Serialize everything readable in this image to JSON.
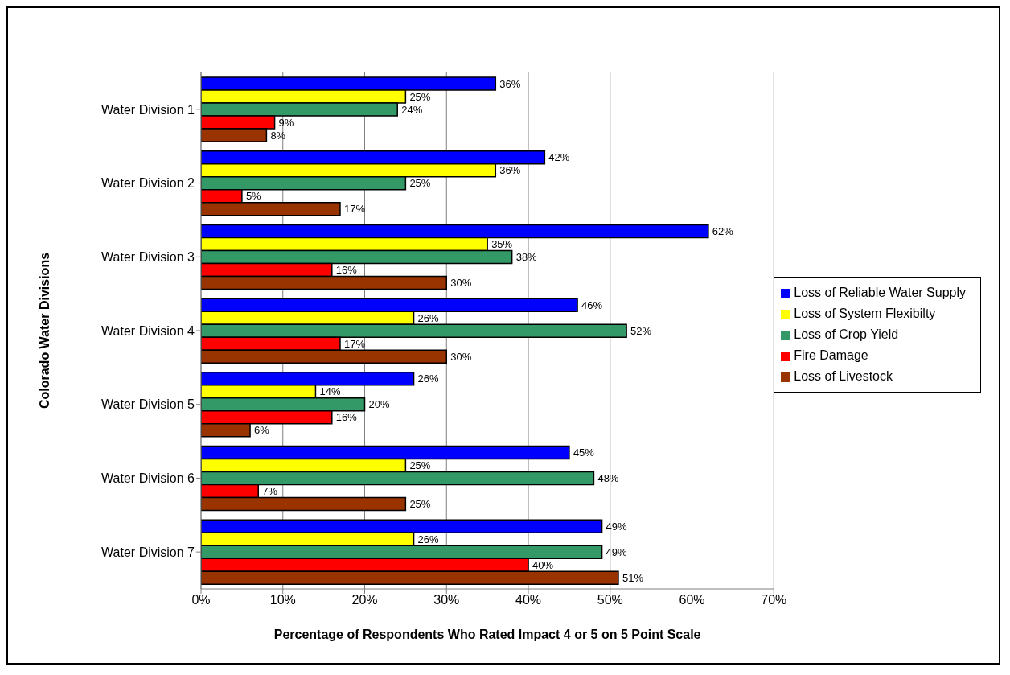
{
  "chart_data": {
    "type": "bar",
    "orientation": "horizontal",
    "xlabel": "Percentage of Respondents Who Rated Impact 4 or 5 on 5 Point Scale",
    "ylabel": "Colorado Water Divisions",
    "categories": [
      "Water Division 1",
      "Water Division 2",
      "Water Division 3",
      "Water Division 4",
      "Water Division 5",
      "Water Division 6",
      "Water Division 7"
    ],
    "series": [
      {
        "name": "Loss of Reliable Water Supply",
        "color": "#0000ff",
        "values": [
          36,
          42,
          62,
          46,
          26,
          45,
          49
        ],
        "value_labels": [
          "36%",
          "42%",
          "62%",
          "46%",
          "26%",
          "45%",
          "49%"
        ]
      },
      {
        "name": "Loss of System Flexibilty",
        "color": "#ffff00",
        "values": [
          25,
          36,
          35,
          26,
          14,
          25,
          26
        ],
        "value_labels": [
          "25%",
          "36%",
          "35%",
          "26%",
          "14%",
          "25%",
          "26%"
        ]
      },
      {
        "name": "Loss of Crop Yield",
        "color": "#339966",
        "values": [
          24,
          25,
          38,
          52,
          20,
          48,
          49
        ],
        "value_labels": [
          "24%",
          "25%",
          "38%",
          "52%",
          "20%",
          "48%",
          "49%"
        ]
      },
      {
        "name": "Fire Damage",
        "color": "#ff0000",
        "values": [
          9,
          5,
          16,
          17,
          16,
          7,
          40
        ],
        "value_labels": [
          "9%",
          "5%",
          "16%",
          "17%",
          "16%",
          "7%",
          "40%"
        ]
      },
      {
        "name": "Loss of Livestock",
        "color": "#993300",
        "values": [
          8,
          17,
          30,
          30,
          6,
          25,
          51
        ],
        "value_labels": [
          "8%",
          "17%",
          "30%",
          "30%",
          "6%",
          "25%",
          "51%"
        ]
      }
    ],
    "xlim": [
      0,
      70
    ],
    "xticks": [
      {
        "value": 0,
        "label": "0%"
      },
      {
        "value": 10,
        "label": "10%"
      },
      {
        "value": 20,
        "label": "20%"
      },
      {
        "value": 30,
        "label": "30%"
      },
      {
        "value": 40,
        "label": "40%"
      },
      {
        "value": 50,
        "label": "50%"
      },
      {
        "value": 60,
        "label": "60%"
      },
      {
        "value": 70,
        "label": "70%"
      }
    ],
    "grid": "x",
    "legend": "right"
  }
}
